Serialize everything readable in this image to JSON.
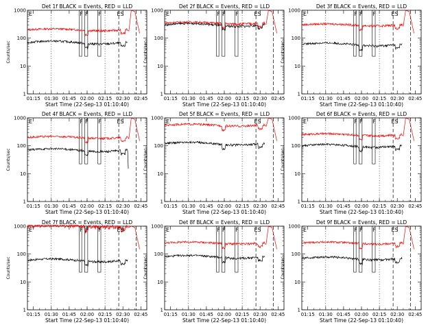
{
  "figure": {
    "start_time_label": "Start Time (22-Sep-13 01:10:40)",
    "ylabel": "Counts/sec",
    "series_colors": {
      "events": "#000000",
      "lld": "#ff0000"
    },
    "x_ticks": [
      "01:15",
      "01:30",
      "01:45",
      "02:00",
      "02:15",
      "02:30",
      "02:45"
    ],
    "y_ticks": [
      "1",
      "10",
      "100",
      "1000"
    ],
    "marker_labels": {
      "F": "F",
      "E": "E",
      "S": "S",
      "ES": "ES"
    }
  },
  "chart_data": [
    {
      "type": "line",
      "title": "Det 1f BLACK = Events, RED = LLD",
      "xlabel": "Start Time (22-Sep-13 01:10:40)",
      "ylabel": "Counts/sec",
      "yscale": "log",
      "ylim": [
        1,
        1000
      ],
      "xlim": [
        "01:10",
        "02:50"
      ],
      "events_level": 70,
      "lld_level": 200,
      "spike_min": 0,
      "saturated": false,
      "markers": [
        "E",
        "F",
        "F",
        "F",
        "ES"
      ]
    },
    {
      "type": "line",
      "title": "Det 2f BLACK = Events, RED = LLD",
      "xlabel": "Start Time (22-Sep-13 01:10:40)",
      "ylabel": "Counts/sec",
      "yscale": "log",
      "ylim": [
        1,
        1000
      ],
      "xlim": [
        "01:10",
        "02:50"
      ],
      "events_level": 300,
      "lld_level": 350,
      "spike_min": 0,
      "saturated": false,
      "markers": [
        "E",
        "F",
        "F",
        "F",
        "ES"
      ]
    },
    {
      "type": "line",
      "title": "Det 3f BLACK = Events, RED = LLD",
      "xlabel": "Start Time (22-Sep-13 01:10:40)",
      "ylabel": "Counts/sec",
      "yscale": "log",
      "ylim": [
        1,
        1000
      ],
      "xlim": [
        "01:10",
        "02:50"
      ],
      "events_level": 60,
      "lld_level": 300,
      "spike_min": 0,
      "saturated": false,
      "markers": [
        "E",
        "F",
        "F",
        "F",
        "ES"
      ]
    },
    {
      "type": "line",
      "title": "Det 4f BLACK = Events, RED = LLD",
      "xlabel": "Start Time (22-Sep-13 01:10:40)",
      "ylabel": "Counts/sec",
      "yscale": "log",
      "ylim": [
        1,
        1000
      ],
      "xlim": [
        "01:10",
        "02:50"
      ],
      "events_level": 70,
      "lld_level": 200,
      "spike_min": 15,
      "saturated": false,
      "markers": [
        "E",
        "F",
        "F",
        "F",
        "ES"
      ]
    },
    {
      "type": "line",
      "title": "Det 5f BLACK = Events, RED = LLD",
      "xlabel": "Start Time (22-Sep-13 01:10:40)",
      "ylabel": "Counts/sec",
      "yscale": "log",
      "ylim": [
        1,
        1000
      ],
      "xlim": [
        "01:10",
        "02:50"
      ],
      "events_level": 120,
      "lld_level": 550,
      "spike_min": 0,
      "saturated": false,
      "markers": [
        "E",
        "ES"
      ]
    },
    {
      "type": "line",
      "title": "Det 6f BLACK = Events, RED = LLD",
      "xlabel": "Start Time (22-Sep-13 01:10:40)",
      "ylabel": "Counts/sec",
      "yscale": "log",
      "ylim": [
        1,
        1000
      ],
      "xlim": [
        "01:10",
        "02:50"
      ],
      "events_level": 100,
      "lld_level": 250,
      "spike_min": 0,
      "saturated": false,
      "markers": [
        "E",
        "F",
        "F",
        "F",
        "ES"
      ]
    },
    {
      "type": "line",
      "title": "Det 7f BLACK = Events, RED = LLD",
      "xlabel": "Start Time (22-Sep-13 01:10:40)",
      "ylabel": "Counts/sec",
      "yscale": "log",
      "ylim": [
        1,
        1000
      ],
      "xlim": [
        "01:10",
        "02:50"
      ],
      "events_level": 60,
      "lld_level": 1000,
      "spike_min": 0,
      "saturated": true,
      "markers": [
        "E",
        "F",
        "F",
        "F",
        "ES"
      ]
    },
    {
      "type": "line",
      "title": "Det 8f BLACK = Events, RED = LLD",
      "xlabel": "Start Time (22-Sep-13 01:10:40)",
      "ylabel": "Counts/sec",
      "yscale": "log",
      "ylim": [
        1,
        1000
      ],
      "xlim": [
        "01:10",
        "02:50"
      ],
      "events_level": 80,
      "lld_level": 250,
      "spike_min": 0,
      "saturated": false,
      "markers": [
        "E",
        "F",
        "F",
        "F",
        "ES"
      ]
    },
    {
      "type": "line",
      "title": "Det 9f BLACK = Events, RED = LLD",
      "xlabel": "Start Time (22-Sep-13 01:10:40)",
      "ylabel": "Counts/sec",
      "yscale": "log",
      "ylim": [
        1,
        1000
      ],
      "xlim": [
        "01:10",
        "02:50"
      ],
      "events_level": 70,
      "lld_level": 250,
      "spike_min": 0,
      "saturated": false,
      "markers": [
        "E",
        "F",
        "F",
        "F",
        "ES"
      ]
    }
  ]
}
